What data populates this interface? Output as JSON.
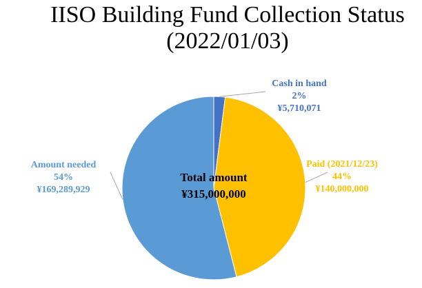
{
  "chart_data": {
    "type": "pie",
    "title_lines": [
      "IISO Building Fund Collection Status",
      "(2022/01/03)"
    ],
    "center_label": "Total amount",
    "center_value": "¥315,000,000",
    "categories": [
      "Cash in hand",
      "Paid (2021/12/23)",
      "Amount needed"
    ],
    "values": [
      2,
      44,
      54
    ],
    "value_labels": [
      "2%",
      "44%",
      "54%"
    ],
    "amounts": [
      "¥5,710,071",
      "¥140,000,000",
      "¥169,289,929"
    ],
    "colors": [
      "#4472c4",
      "#ffc000",
      "#5b9bd5"
    ]
  }
}
